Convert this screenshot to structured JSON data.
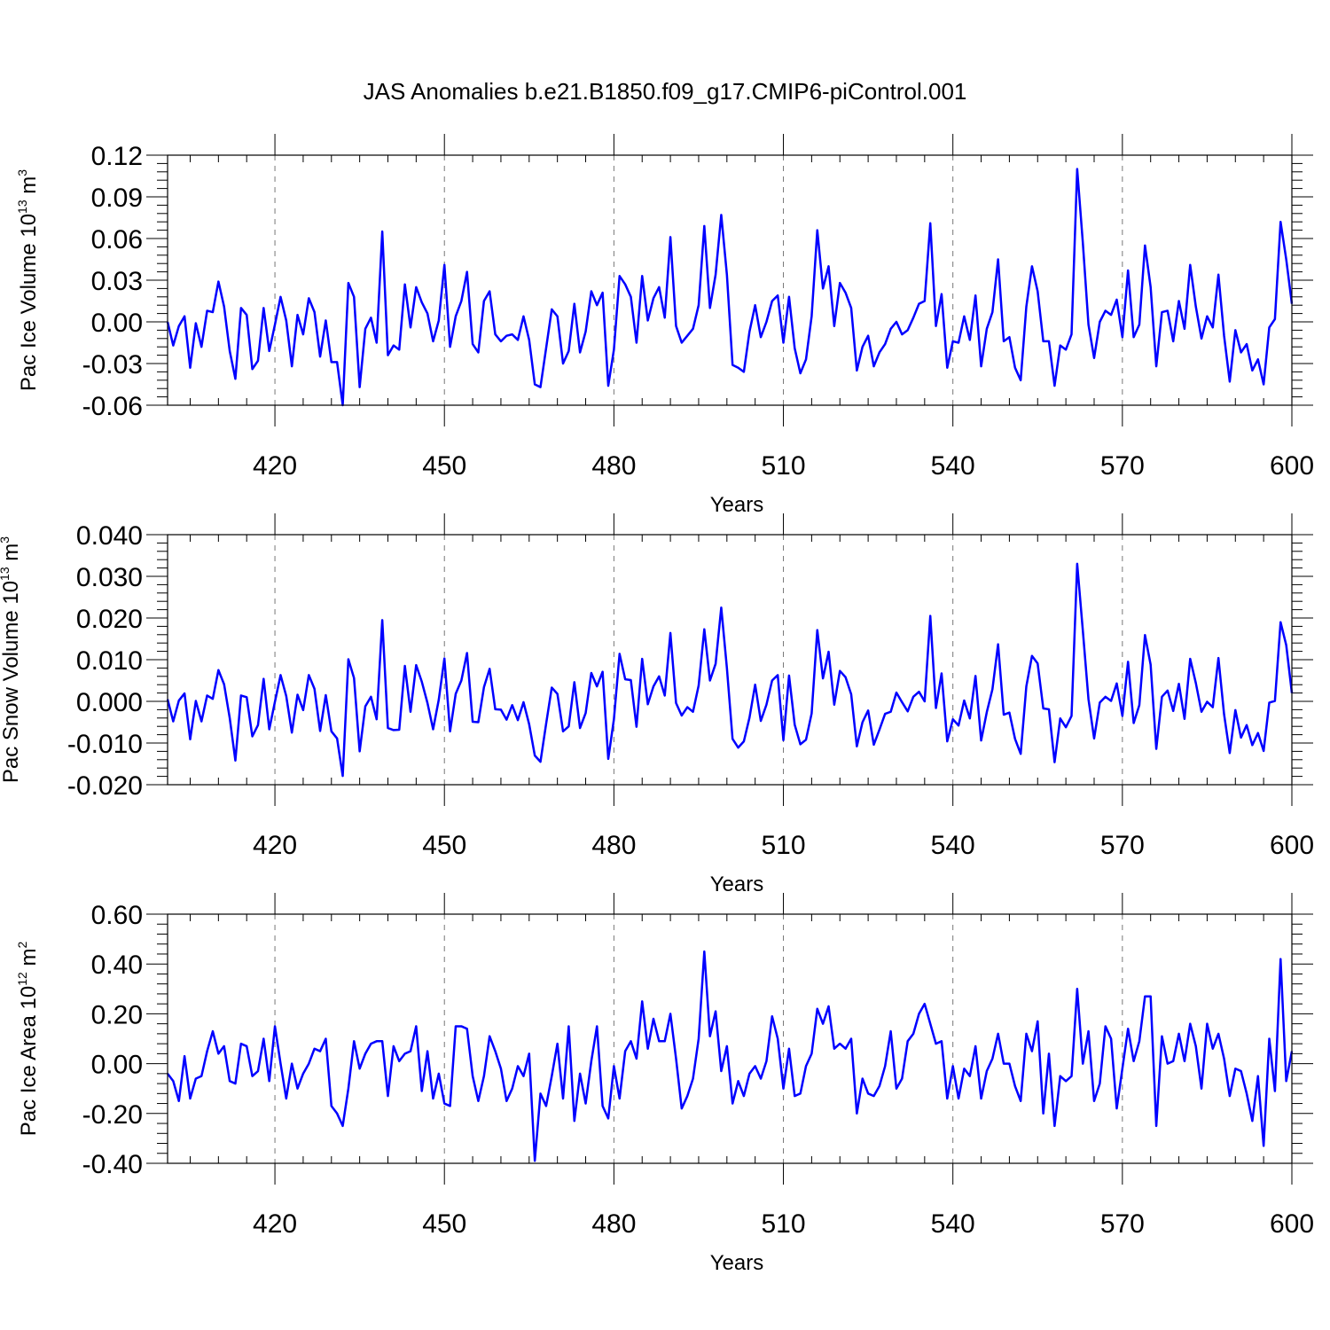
{
  "figure": {
    "title": "JAS Anomalies b.e21.B1850.f09_g17.CMIP6-piControl.001"
  },
  "chart_data": [
    {
      "type": "line",
      "xlabel": "Years",
      "ylabel": {
        "text": "Pac Ice Volume 10",
        "exp": "13",
        "unit": " m",
        "unit_exp": "3"
      },
      "xlim": [
        401,
        600
      ],
      "ylim": [
        -0.06,
        0.12
      ],
      "xticks": [
        420,
        450,
        480,
        510,
        540,
        570,
        600
      ],
      "yticks": [
        "-0.06",
        "-0.03",
        "0.00",
        "0.03",
        "0.06",
        "0.09",
        "0.12"
      ],
      "ytick_values": [
        -0.06,
        -0.03,
        0.0,
        0.03,
        0.06,
        0.09,
        0.12
      ],
      "line_color": "#0000ff",
      "grid": "vertical dashed at major x ticks",
      "x_start": 401,
      "values": [
        0.0,
        -0.017,
        -0.003,
        0.004,
        -0.033,
        -0.001,
        -0.018,
        0.008,
        0.007,
        0.029,
        0.011,
        -0.021,
        -0.041,
        0.01,
        0.005,
        -0.034,
        -0.028,
        0.01,
        -0.021,
        -0.002,
        0.018,
        0.001,
        -0.032,
        0.005,
        -0.009,
        0.017,
        0.007,
        -0.025,
        0.001,
        -0.029,
        -0.029,
        -0.06,
        0.028,
        0.018,
        -0.047,
        -0.005,
        0.003,
        -0.015,
        0.065,
        -0.024,
        -0.017,
        -0.02,
        0.027,
        -0.004,
        0.025,
        0.014,
        0.006,
        -0.014,
        0.001,
        0.041,
        -0.018,
        0.004,
        0.015,
        0.036,
        -0.016,
        -0.022,
        0.015,
        0.022,
        -0.009,
        -0.014,
        -0.01,
        -0.009,
        -0.013,
        0.004,
        -0.013,
        -0.045,
        -0.047,
        -0.019,
        0.009,
        0.004,
        -0.03,
        -0.021,
        0.013,
        -0.022,
        -0.007,
        0.022,
        0.012,
        0.021,
        -0.046,
        -0.02,
        0.033,
        0.027,
        0.018,
        -0.015,
        0.033,
        0.001,
        0.017,
        0.025,
        0.003,
        0.061,
        -0.003,
        -0.015,
        -0.01,
        -0.005,
        0.012,
        0.069,
        0.01,
        0.034,
        0.077,
        0.034,
        -0.031,
        -0.033,
        -0.036,
        -0.007,
        0.012,
        -0.011,
        0.0,
        0.015,
        0.019,
        -0.015,
        0.018,
        -0.019,
        -0.037,
        -0.027,
        0.004,
        0.066,
        0.024,
        0.04,
        -0.003,
        0.028,
        0.021,
        0.01,
        -0.035,
        -0.018,
        -0.01,
        -0.032,
        -0.022,
        -0.016,
        -0.005,
        0.0,
        -0.009,
        -0.006,
        0.003,
        0.013,
        0.015,
        0.071,
        -0.003,
        0.02,
        -0.033,
        -0.014,
        -0.015,
        0.004,
        -0.013,
        0.019,
        -0.032,
        -0.005,
        0.007,
        0.045,
        -0.014,
        -0.011,
        -0.033,
        -0.042,
        0.011,
        0.04,
        0.022,
        -0.014,
        -0.014,
        -0.046,
        -0.017,
        -0.02,
        -0.009,
        0.11,
        0.057,
        -0.002,
        -0.026,
        0.0,
        0.008,
        0.005,
        0.016,
        -0.011,
        0.037,
        -0.011,
        -0.002,
        0.055,
        0.025,
        -0.032,
        0.007,
        0.008,
        -0.014,
        0.015,
        -0.005,
        0.041,
        0.011,
        -0.012,
        0.004,
        -0.004,
        0.034,
        -0.01,
        -0.043,
        -0.006,
        -0.022,
        -0.016,
        -0.035,
        -0.027,
        -0.045,
        -0.004,
        0.002,
        0.072,
        0.045,
        0.013
      ]
    },
    {
      "type": "line",
      "xlabel": "Years",
      "ylabel": {
        "text": "Pac Snow Volume 10",
        "exp": "13",
        "unit": " m",
        "unit_exp": "3"
      },
      "xlim": [
        401,
        600
      ],
      "ylim": [
        -0.02,
        0.04
      ],
      "xticks": [
        420,
        450,
        480,
        510,
        540,
        570,
        600
      ],
      "yticks": [
        "-0.020",
        "-0.010",
        "0.000",
        "0.010",
        "0.020",
        "0.030",
        "0.040"
      ],
      "ytick_values": [
        -0.02,
        -0.01,
        0.0,
        0.01,
        0.02,
        0.03,
        0.04
      ],
      "line_color": "#0000ff",
      "grid": "vertical dashed at major x ticks",
      "x_start": 401,
      "values": [
        0.0005,
        -0.0048,
        0.0002,
        0.0019,
        -0.0091,
        0.0001,
        -0.0048,
        0.0014,
        0.0006,
        0.0075,
        0.0041,
        -0.004,
        -0.0142,
        0.0014,
        0.001,
        -0.0084,
        -0.0057,
        0.0054,
        -0.0067,
        -0.0001,
        0.0063,
        0.0013,
        -0.0075,
        0.0016,
        -0.0021,
        0.0063,
        0.003,
        -0.0071,
        0.0015,
        -0.0072,
        -0.0089,
        -0.0179,
        0.0101,
        0.0056,
        -0.012,
        -0.0012,
        0.0011,
        -0.0043,
        0.0195,
        -0.0064,
        -0.0069,
        -0.0068,
        0.0085,
        -0.0025,
        0.0087,
        0.0047,
        -0.0004,
        -0.0067,
        0.0004,
        0.0103,
        -0.0072,
        0.0018,
        0.005,
        0.0116,
        -0.0049,
        -0.005,
        0.0034,
        0.0078,
        -0.0019,
        -0.002,
        -0.0044,
        -0.0009,
        -0.0045,
        -0.0002,
        -0.0055,
        -0.013,
        -0.0145,
        -0.0054,
        0.0033,
        0.0018,
        -0.0072,
        -0.006,
        0.0046,
        -0.0064,
        -0.0028,
        0.0068,
        0.0036,
        0.0071,
        -0.0138,
        -0.0043,
        0.0114,
        0.0053,
        0.0051,
        -0.0061,
        0.0102,
        -0.0007,
        0.0036,
        0.006,
        0.0014,
        0.0164,
        -0.0004,
        -0.0034,
        -0.0014,
        -0.0025,
        0.0038,
        0.0173,
        0.005,
        0.009,
        0.0225,
        0.008,
        -0.009,
        -0.0111,
        -0.0096,
        -0.0039,
        0.004,
        -0.0047,
        -0.0008,
        0.005,
        0.0063,
        -0.0093,
        0.0062,
        -0.0056,
        -0.0103,
        -0.0092,
        -0.0029,
        0.0171,
        0.0055,
        0.0119,
        -0.0008,
        0.0073,
        0.0058,
        0.0017,
        -0.0108,
        -0.005,
        -0.0022,
        -0.0104,
        -0.0068,
        -0.003,
        -0.0025,
        0.0021,
        -0.0002,
        -0.0024,
        0.0011,
        0.0023,
        0.0,
        0.0205,
        -0.0016,
        0.0067,
        -0.0096,
        -0.0043,
        -0.0058,
        0.0002,
        -0.0041,
        0.0061,
        -0.0094,
        -0.0026,
        0.0029,
        0.0137,
        -0.0032,
        -0.0027,
        -0.009,
        -0.0126,
        0.0036,
        0.0109,
        0.0091,
        -0.0017,
        -0.0019,
        -0.0146,
        -0.0041,
        -0.0062,
        -0.0035,
        0.033,
        0.017,
        0.0005,
        -0.0089,
        -0.0003,
        0.0011,
        0.0001,
        0.0043,
        -0.0035,
        0.0095,
        -0.0052,
        -0.0009,
        0.0159,
        0.0088,
        -0.0114,
        0.0011,
        0.0026,
        -0.0023,
        0.0042,
        -0.0042,
        0.0102,
        0.0044,
        -0.0025,
        -0.0001,
        -0.0014,
        0.0104,
        -0.0031,
        -0.0124,
        -0.0021,
        -0.0087,
        -0.0057,
        -0.0105,
        -0.0076,
        -0.0119,
        -0.0003,
        0.0001,
        0.019,
        0.0135,
        0.002
      ]
    },
    {
      "type": "line",
      "xlabel": "Years",
      "ylabel": {
        "text": "Pac Ice Area 10",
        "exp": "12",
        "unit": " m",
        "unit_exp": "2"
      },
      "xlim": [
        401,
        600
      ],
      "ylim": [
        -0.4,
        0.6
      ],
      "xticks": [
        420,
        450,
        480,
        510,
        540,
        570,
        600
      ],
      "yticks": [
        "-0.40",
        "-0.20",
        "0.00",
        "0.20",
        "0.40",
        "0.60"
      ],
      "ytick_values": [
        -0.4,
        -0.2,
        0.0,
        0.2,
        0.4,
        0.6
      ],
      "line_color": "#0000ff",
      "grid": "vertical dashed at major x ticks",
      "x_start": 401,
      "values": [
        -0.04,
        -0.07,
        -0.15,
        0.03,
        -0.14,
        -0.06,
        -0.05,
        0.05,
        0.13,
        0.04,
        0.07,
        -0.07,
        -0.08,
        0.08,
        0.07,
        -0.05,
        -0.03,
        0.1,
        -0.07,
        0.15,
        0.0,
        -0.14,
        0.0,
        -0.1,
        -0.04,
        0.0,
        0.06,
        0.05,
        0.1,
        -0.17,
        -0.2,
        -0.25,
        -0.1,
        0.09,
        -0.02,
        0.04,
        0.08,
        0.09,
        0.09,
        -0.13,
        0.07,
        0.01,
        0.04,
        0.05,
        0.15,
        -0.11,
        0.05,
        -0.14,
        -0.04,
        -0.16,
        -0.17,
        0.15,
        0.15,
        0.14,
        -0.05,
        -0.15,
        -0.05,
        0.11,
        0.05,
        -0.02,
        -0.15,
        -0.1,
        -0.01,
        -0.05,
        0.04,
        -0.39,
        -0.12,
        -0.17,
        -0.05,
        0.08,
        -0.14,
        0.15,
        -0.23,
        -0.04,
        -0.16,
        0.01,
        0.15,
        -0.17,
        -0.22,
        -0.01,
        -0.14,
        0.05,
        0.09,
        0.02,
        0.25,
        0.06,
        0.18,
        0.09,
        0.09,
        0.2,
        0.02,
        -0.18,
        -0.13,
        -0.06,
        0.1,
        0.45,
        0.11,
        0.21,
        -0.03,
        0.07,
        -0.16,
        -0.07,
        -0.13,
        -0.04,
        -0.01,
        -0.06,
        0.01,
        0.19,
        0.1,
        -0.1,
        0.06,
        -0.13,
        -0.12,
        -0.01,
        0.04,
        0.22,
        0.16,
        0.23,
        0.06,
        0.08,
        0.06,
        0.1,
        -0.2,
        -0.06,
        -0.12,
        -0.13,
        -0.09,
        -0.01,
        0.13,
        -0.1,
        -0.06,
        0.09,
        0.12,
        0.2,
        0.24,
        0.16,
        0.08,
        0.09,
        -0.14,
        -0.01,
        -0.14,
        -0.02,
        -0.05,
        0.07,
        -0.14,
        -0.03,
        0.02,
        0.12,
        0.0,
        0.0,
        -0.09,
        -0.15,
        0.12,
        0.05,
        0.17,
        -0.2,
        0.04,
        -0.25,
        -0.05,
        -0.07,
        -0.05,
        0.3,
        0.0,
        0.13,
        -0.15,
        -0.08,
        0.15,
        0.1,
        -0.18,
        -0.02,
        0.14,
        0.01,
        0.09,
        0.27,
        0.27,
        -0.25,
        0.11,
        0.0,
        0.01,
        0.12,
        0.01,
        0.16,
        0.07,
        -0.1,
        0.16,
        0.06,
        0.12,
        0.02,
        -0.13,
        -0.02,
        -0.03,
        -0.12,
        -0.23,
        -0.05,
        -0.33,
        0.1,
        -0.11,
        0.42,
        -0.07,
        0.05
      ]
    }
  ]
}
